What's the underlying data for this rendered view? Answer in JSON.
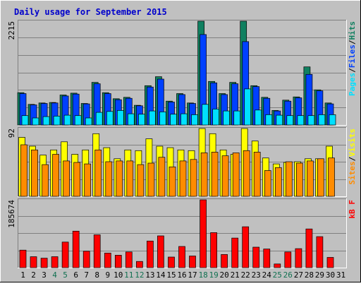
{
  "title": "Daily usage for September 2015",
  "colors": {
    "background": "#c0c0c0",
    "title": "#0000cc",
    "hits": "#108060",
    "files": "#0040ff",
    "pages": "#00e0ff",
    "visits": "#ffff00",
    "sites": "#ff8c00",
    "kbytes": "#ff0000",
    "weekend_label": "#107050",
    "weekday_label": "#000000"
  },
  "chart_data": [
    {
      "type": "bar",
      "name": "hits-files-pages",
      "y_max_label": "2215",
      "ylim": [
        0,
        2215
      ],
      "legend": [
        {
          "label": "Pages",
          "color": "#00e0ff"
        },
        {
          "label": "/",
          "color": "#000000"
        },
        {
          "label": "Files",
          "color": "#0040ff"
        },
        {
          "label": "/",
          "color": "#000000"
        },
        {
          "label": "Hits",
          "color": "#108060"
        }
      ],
      "categories": [
        "1",
        "2",
        "3",
        "4",
        "5",
        "6",
        "7",
        "8",
        "9",
        "10",
        "11",
        "12",
        "13",
        "14",
        "15",
        "16",
        "17",
        "18",
        "19",
        "20",
        "21",
        "22",
        "23",
        "24",
        "25",
        "26",
        "27",
        "28",
        "29",
        "30",
        "31"
      ],
      "series": [
        {
          "name": "Hits",
          "values": [
            690,
            440,
            470,
            480,
            640,
            680,
            460,
            910,
            690,
            560,
            590,
            420,
            840,
            1030,
            510,
            670,
            470,
            2215,
            930,
            670,
            910,
            2215,
            840,
            590,
            310,
            530,
            600,
            1240,
            750,
            470,
            0
          ]
        },
        {
          "name": "Files",
          "values": [
            670,
            430,
            460,
            470,
            620,
            660,
            450,
            880,
            670,
            540,
            570,
            410,
            810,
            980,
            490,
            650,
            460,
            1930,
            900,
            650,
            880,
            1780,
            820,
            570,
            300,
            510,
            580,
            1080,
            730,
            450,
            0
          ]
        },
        {
          "name": "Pages",
          "values": [
            200,
            150,
            180,
            190,
            210,
            200,
            150,
            270,
            290,
            310,
            240,
            230,
            300,
            280,
            230,
            240,
            220,
            440,
            340,
            300,
            300,
            770,
            320,
            220,
            210,
            200,
            200,
            200,
            220,
            220,
            0
          ]
        }
      ]
    },
    {
      "type": "bar",
      "name": "visits-sites",
      "y_max_label": "92",
      "ylim": [
        0,
        92
      ],
      "legend": [
        {
          "label": "Sites",
          "color": "#ff8c00"
        },
        {
          "label": "/",
          "color": "#000000"
        },
        {
          "label": "Visits",
          "color": "#ffff00"
        }
      ],
      "categories": [
        "1",
        "2",
        "3",
        "4",
        "5",
        "6",
        "7",
        "8",
        "9",
        "10",
        "11",
        "12",
        "13",
        "14",
        "15",
        "16",
        "17",
        "18",
        "19",
        "20",
        "21",
        "22",
        "23",
        "24",
        "25",
        "26",
        "27",
        "28",
        "29",
        "30",
        "31"
      ],
      "series": [
        {
          "name": "Visits",
          "values": [
            80,
            68,
            56,
            63,
            74,
            57,
            63,
            85,
            66,
            51,
            63,
            62,
            78,
            68,
            66,
            63,
            62,
            92,
            85,
            63,
            57,
            92,
            75,
            52,
            44,
            46,
            47,
            51,
            51,
            68,
            0
          ]
        },
        {
          "name": "Sites",
          "values": [
            70,
            63,
            43,
            57,
            48,
            46,
            44,
            63,
            47,
            48,
            48,
            43,
            45,
            53,
            40,
            48,
            50,
            59,
            60,
            55,
            59,
            62,
            60,
            35,
            39,
            47,
            45,
            48,
            51,
            52,
            0
          ]
        }
      ]
    },
    {
      "type": "bar",
      "name": "kbytes",
      "y_max_label": "185674",
      "ylim": [
        0,
        185674
      ],
      "legend": [
        {
          "label": "kB F",
          "color": "#ff0000"
        }
      ],
      "categories": [
        "1",
        "2",
        "3",
        "4",
        "5",
        "6",
        "7",
        "8",
        "9",
        "10",
        "11",
        "12",
        "13",
        "14",
        "15",
        "16",
        "17",
        "18",
        "19",
        "20",
        "21",
        "22",
        "23",
        "24",
        "25",
        "26",
        "27",
        "28",
        "29",
        "30",
        "31"
      ],
      "series": [
        {
          "name": "kB F",
          "values": [
            48000,
            30000,
            26000,
            30000,
            70000,
            100000,
            45000,
            90000,
            40000,
            34000,
            43000,
            17000,
            73000,
            87000,
            29000,
            58000,
            32000,
            185674,
            96000,
            36000,
            81000,
            112000,
            56000,
            51000,
            10000,
            43000,
            52000,
            106000,
            85000,
            28000,
            0
          ]
        }
      ]
    }
  ]
}
